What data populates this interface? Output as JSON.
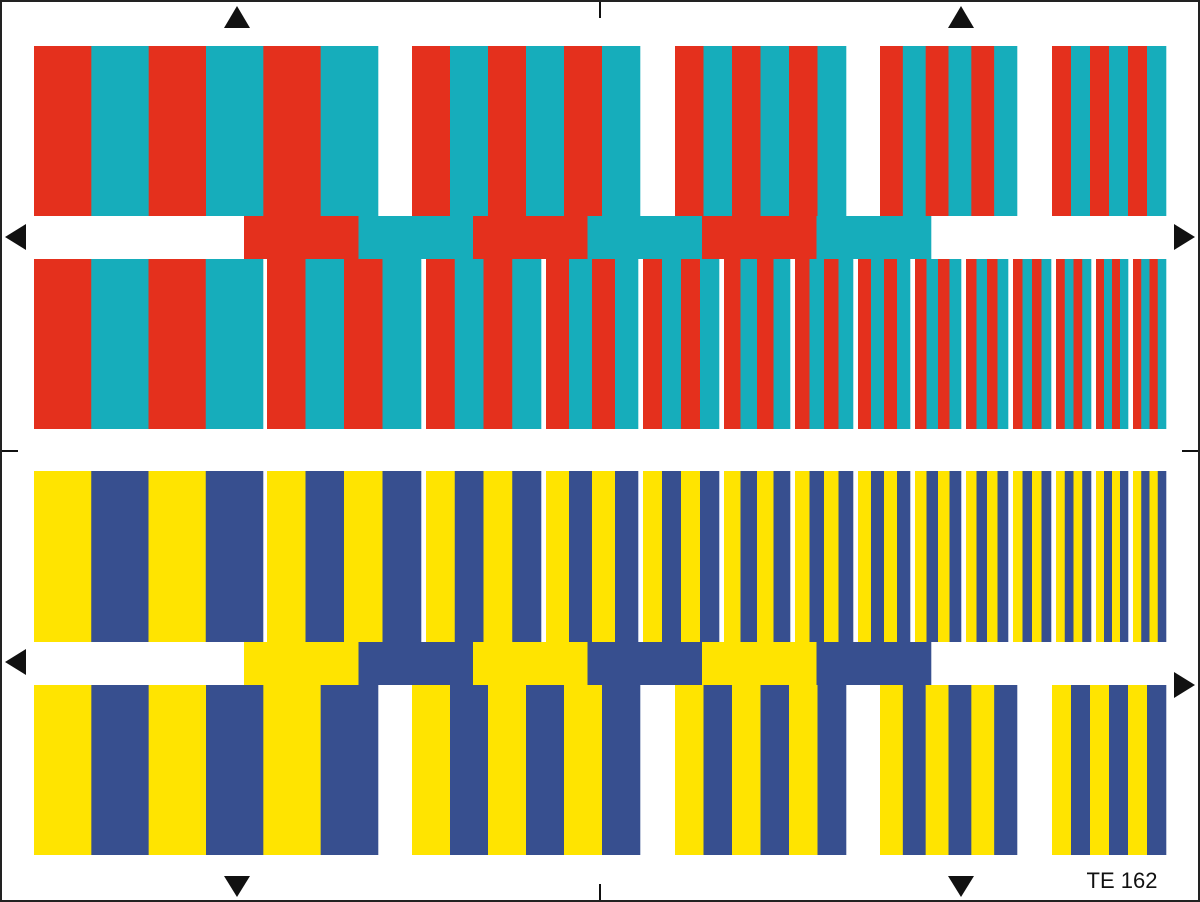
{
  "label": "TE 162"
}
